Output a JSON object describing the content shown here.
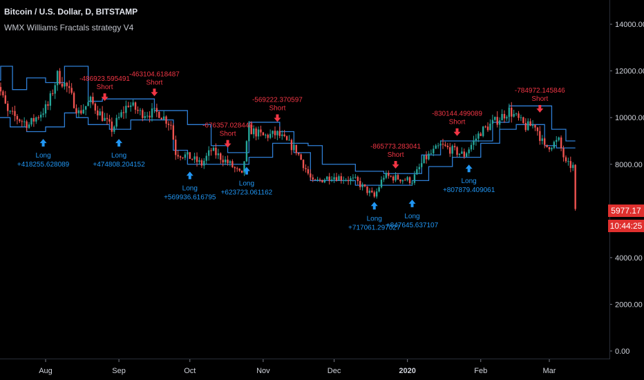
{
  "header": {
    "title": "Bitcoin / U.S. Dollar, D, BITSTAMP",
    "subtitle": "WMX Williams Fractals strategy V4"
  },
  "price_badges": {
    "last_price": "5977.17",
    "countdown": "10:44:25"
  },
  "colors": {
    "background": "#000000",
    "up_candle": "#26a69a",
    "down_candle": "#ef5350",
    "fractal_line": "#2f7fd6",
    "long_signal": "#2196f3",
    "short_signal": "#f23645",
    "price_tag": "#e0302e"
  },
  "chart_data": {
    "type": "candlestick",
    "title": "Bitcoin / U.S. Dollar, D, BITSTAMP",
    "x_tick_labels": [
      "Aug",
      "Sep",
      "Oct",
      "Nov",
      "Dec",
      "2020",
      "Feb",
      "Mar"
    ],
    "x_tick_dates": [
      "2019-08-01",
      "2019-09-01",
      "2019-10-01",
      "2019-11-01",
      "2019-12-01",
      "2020-01-01",
      "2020-02-01",
      "2020-03-01"
    ],
    "x_range": [
      "2019-07-02",
      "2020-03-29"
    ],
    "y_ticks": [
      0,
      2000,
      4000,
      6000,
      8000,
      10000,
      12000,
      14000
    ],
    "y_tick_labels": [
      "0.00",
      "2000.00",
      "4000.00",
      "6000.00",
      "8000.00",
      "10000.00",
      "12000.00",
      "14000.00"
    ],
    "ylim": [
      -500,
      15000
    ],
    "grid": false,
    "price_path": [
      [
        "2019-07-10",
        12000
      ],
      [
        "2019-07-16",
        10200
      ],
      [
        "2019-07-25",
        9700
      ],
      [
        "2019-08-02",
        10500
      ],
      [
        "2019-08-06",
        11800
      ],
      [
        "2019-08-10",
        11300
      ],
      [
        "2019-08-15",
        10200
      ],
      [
        "2019-08-20",
        10700
      ],
      [
        "2019-08-29",
        9500
      ],
      [
        "2019-09-05",
        10600
      ],
      [
        "2019-09-10",
        10200
      ],
      [
        "2019-09-18",
        10200
      ],
      [
        "2019-09-23",
        9700
      ],
      [
        "2019-09-25",
        8500
      ],
      [
        "2019-10-01",
        8300
      ],
      [
        "2019-10-06",
        8000
      ],
      [
        "2019-10-10",
        8600
      ],
      [
        "2019-10-18",
        8000
      ],
      [
        "2019-10-23",
        7500
      ],
      [
        "2019-10-26",
        9500
      ],
      [
        "2019-11-01",
        9200
      ],
      [
        "2019-11-07",
        9300
      ],
      [
        "2019-11-15",
        8600
      ],
      [
        "2019-11-22",
        7200
      ],
      [
        "2019-11-30",
        7500
      ],
      [
        "2019-12-10",
        7300
      ],
      [
        "2019-12-18",
        6600
      ],
      [
        "2019-12-22",
        7500
      ],
      [
        "2020-01-03",
        7300
      ],
      [
        "2020-01-08",
        8200
      ],
      [
        "2020-01-15",
        8800
      ],
      [
        "2020-01-25",
        8400
      ],
      [
        "2020-02-01",
        9400
      ],
      [
        "2020-02-08",
        9900
      ],
      [
        "2020-02-13",
        10300
      ],
      [
        "2020-02-20",
        9600
      ],
      [
        "2020-02-24",
        9700
      ],
      [
        "2020-02-28",
        8700
      ],
      [
        "2020-03-05",
        9000
      ],
      [
        "2020-03-08",
        8000
      ],
      [
        "2020-03-11",
        7900
      ],
      [
        "2020-03-12",
        5977
      ]
    ],
    "annotations": [
      {
        "type": "Long",
        "date": "2019-07-31",
        "price": 9500,
        "value": "+418255.628089"
      },
      {
        "type": "Short",
        "date": "2019-08-26",
        "price": 10300,
        "value": "-486923.595491"
      },
      {
        "type": "Long",
        "date": "2019-09-01",
        "price": 9500,
        "value": "+474808.204152"
      },
      {
        "type": "Short",
        "date": "2019-09-16",
        "price": 10500,
        "value": "-463104.618487"
      },
      {
        "type": "Long",
        "date": "2019-10-01",
        "price": 8100,
        "value": "+569936.616795"
      },
      {
        "type": "Short",
        "date": "2019-10-17",
        "price": 8300,
        "value": "-676357.028448"
      },
      {
        "type": "Long",
        "date": "2019-10-25",
        "price": 8300,
        "value": "+623723.061162"
      },
      {
        "type": "Short",
        "date": "2019-11-07",
        "price": 9400,
        "value": "-569222.370597"
      },
      {
        "type": "Long",
        "date": "2019-12-18",
        "price": 6800,
        "value": "+717061.297027"
      },
      {
        "type": "Short",
        "date": "2019-12-27",
        "price": 7400,
        "value": "-865773.283041"
      },
      {
        "type": "Long",
        "date": "2020-01-03",
        "price": 6900,
        "value": "+847645.637107"
      },
      {
        "type": "Short",
        "date": "2020-01-22",
        "price": 8800,
        "value": "-830144.499089"
      },
      {
        "type": "Long",
        "date": "2020-01-27",
        "price": 8400,
        "value": "+807879.409061"
      },
      {
        "type": "Short",
        "date": "2020-02-26",
        "price": 9800,
        "value": "-784972.145846"
      }
    ],
    "fractal_up_line": [
      [
        "2019-07-02",
        11800
      ],
      [
        "2019-07-10",
        11600
      ],
      [
        "2019-07-13",
        12200
      ],
      [
        "2019-07-18",
        11200
      ],
      [
        "2019-07-24",
        11700
      ],
      [
        "2019-08-01",
        11500
      ],
      [
        "2019-08-09",
        12200
      ],
      [
        "2019-08-19",
        10700
      ],
      [
        "2019-08-25",
        10800
      ],
      [
        "2019-09-06",
        10800
      ],
      [
        "2019-09-16",
        10300
      ],
      [
        "2019-09-24",
        10300
      ],
      [
        "2019-09-30",
        9700
      ],
      [
        "2019-10-10",
        8800
      ],
      [
        "2019-10-17",
        8500
      ],
      [
        "2019-10-26",
        9800
      ],
      [
        "2019-11-08",
        9400
      ],
      [
        "2019-11-14",
        8900
      ],
      [
        "2019-11-20",
        8800
      ],
      [
        "2019-11-26",
        8000
      ],
      [
        "2019-12-10",
        7700
      ],
      [
        "2019-12-22",
        7600
      ],
      [
        "2020-01-07",
        8400
      ],
      [
        "2020-01-15",
        9000
      ],
      [
        "2020-01-26",
        9000
      ],
      [
        "2020-02-06",
        9800
      ],
      [
        "2020-02-13",
        10500
      ],
      [
        "2020-02-24",
        10500
      ],
      [
        "2020-03-02",
        9500
      ],
      [
        "2020-03-08",
        9000
      ],
      [
        "2020-03-12",
        9000
      ]
    ],
    "fractal_down_line": [
      [
        "2019-07-02",
        10500
      ],
      [
        "2019-07-10",
        10000
      ],
      [
        "2019-07-17",
        9600
      ],
      [
        "2019-07-24",
        9400
      ],
      [
        "2019-08-01",
        9600
      ],
      [
        "2019-08-09",
        10200
      ],
      [
        "2019-08-14",
        10000
      ],
      [
        "2019-08-19",
        9700
      ],
      [
        "2019-08-28",
        9500
      ],
      [
        "2019-09-06",
        9900
      ],
      [
        "2019-09-16",
        9900
      ],
      [
        "2019-09-24",
        8600
      ],
      [
        "2019-09-30",
        8000
      ],
      [
        "2019-10-08",
        8000
      ],
      [
        "2019-10-20",
        8000
      ],
      [
        "2019-10-26",
        8300
      ],
      [
        "2019-11-05",
        8900
      ],
      [
        "2019-11-14",
        8500
      ],
      [
        "2019-11-21",
        7300
      ],
      [
        "2019-12-01",
        7300
      ],
      [
        "2019-12-10",
        7100
      ],
      [
        "2019-12-18",
        7100
      ],
      [
        "2020-01-03",
        7300
      ],
      [
        "2020-01-10",
        7900
      ],
      [
        "2020-01-20",
        8300
      ],
      [
        "2020-02-01",
        8900
      ],
      [
        "2020-02-09",
        9500
      ],
      [
        "2020-02-16",
        9700
      ],
      [
        "2020-02-28",
        8800
      ],
      [
        "2020-03-04",
        8700
      ],
      [
        "2020-03-12",
        8700
      ]
    ]
  }
}
